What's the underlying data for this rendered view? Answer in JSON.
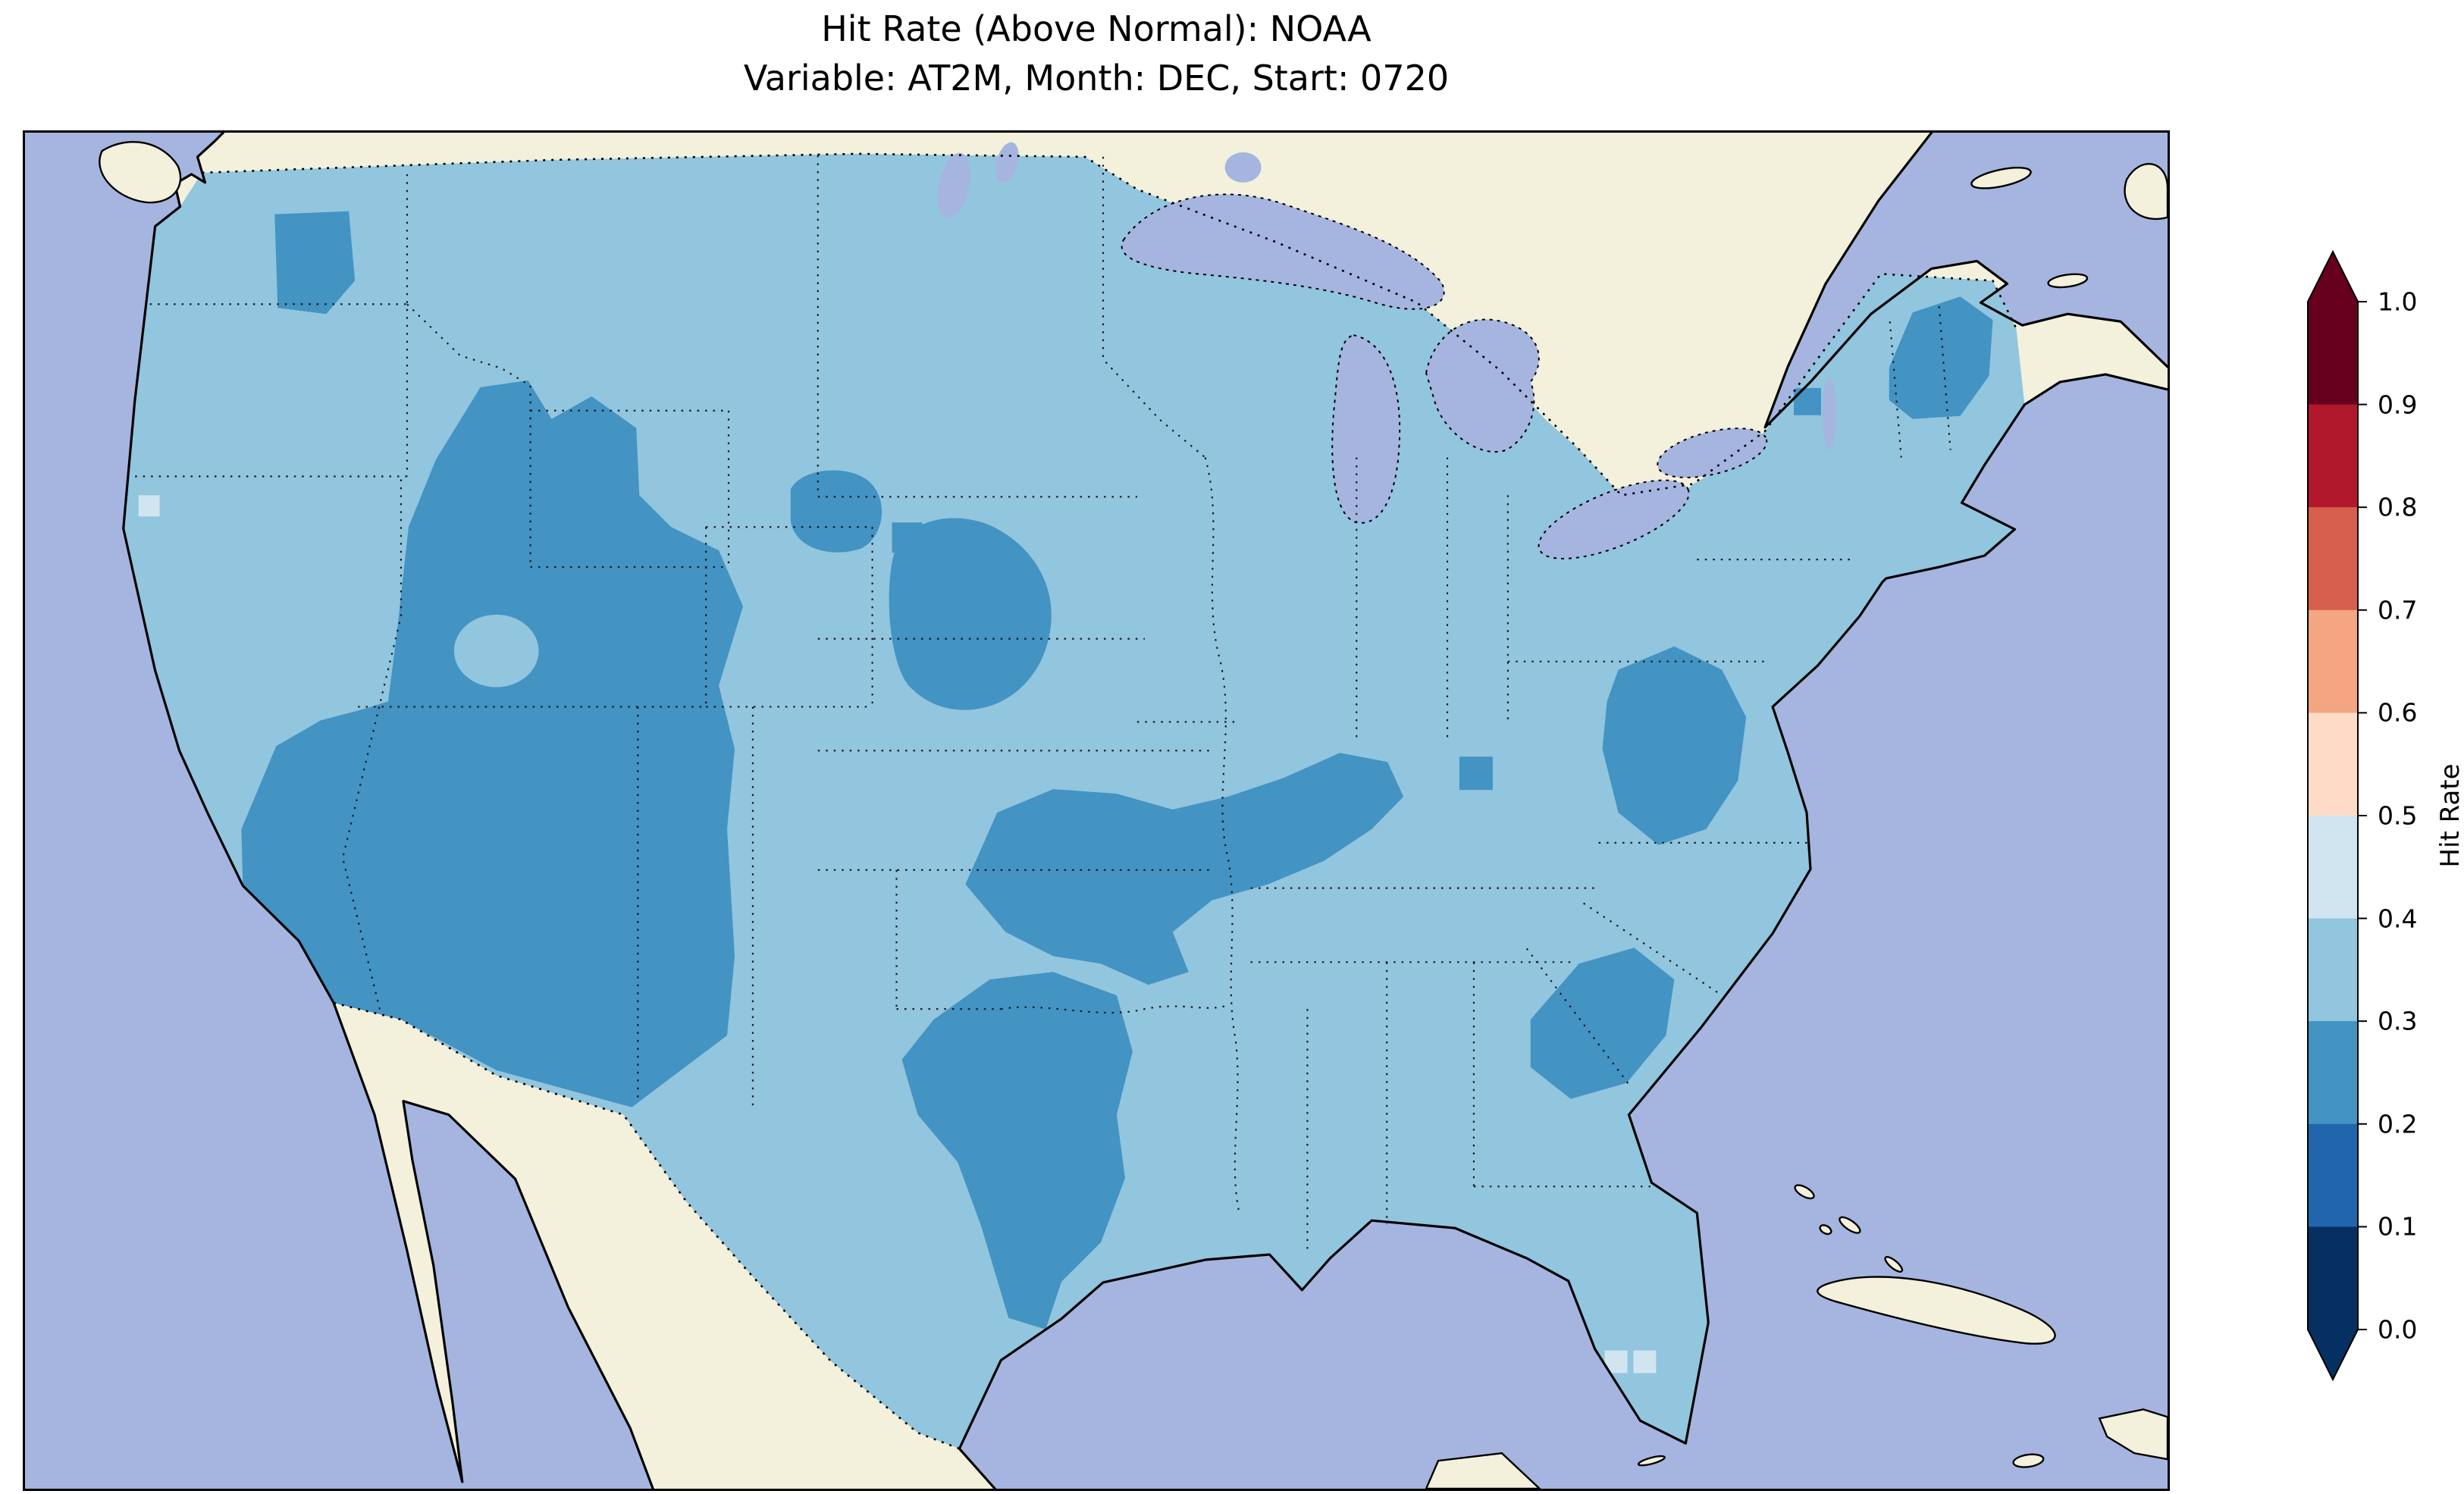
{
  "title": {
    "line1": "Hit Rate (Above Normal): NOAA",
    "line2": "Variable: AT2M, Month: DEC, Start: 0720"
  },
  "colorbar": {
    "label": "Hit Rate",
    "ticks": [
      "1.0",
      "0.9",
      "0.8",
      "0.7",
      "0.6",
      "0.5",
      "0.4",
      "0.3",
      "0.2",
      "0.1",
      "0.0"
    ],
    "segments": [
      {
        "range": "0.9-1.0",
        "color": "#67001f"
      },
      {
        "range": "0.8-0.9",
        "color": "#b2182b"
      },
      {
        "range": "0.7-0.8",
        "color": "#d6604d"
      },
      {
        "range": "0.6-0.7",
        "color": "#f4a582"
      },
      {
        "range": "0.5-0.6",
        "color": "#fddbc7"
      },
      {
        "range": "0.4-0.5",
        "color": "#d1e5f0"
      },
      {
        "range": "0.3-0.4",
        "color": "#92c5de"
      },
      {
        "range": "0.2-0.3",
        "color": "#4393c3"
      },
      {
        "range": "0.1-0.2",
        "color": "#2166ac"
      },
      {
        "range": "0.0-0.1",
        "color": "#053061"
      }
    ],
    "extend_upper_color": "#67001f",
    "extend_lower_color": "#053061"
  },
  "map_colors": {
    "ocean": "#a5b5e0",
    "non_us_land": "#f3f0db",
    "coastline": "#000000"
  },
  "chart_data": {
    "type": "heatmap",
    "title": "Hit Rate (Above Normal): NOAA",
    "subtitle": "Variable: AT2M, Month: DEC, Start: 0720",
    "metric": "Hit Rate (Above Normal)",
    "source": "NOAA",
    "variable": "AT2M",
    "month": "DEC",
    "start": "0720",
    "region": "Contiguous United States (gridded cells), Canada/Mexico shown as land without data",
    "colorbar_label": "Hit Rate",
    "value_range": [
      0.0,
      1.0
    ],
    "bin_width": 0.1,
    "colormap": "RdBu_r discrete, 10 bins, extend arrows on both ends",
    "observed_value_bins": [
      "0.2-0.3",
      "0.3-0.4",
      "0.4-0.5"
    ],
    "regions": [
      {
        "area": "Most of the contiguous US (Pacific NW coast, northern plains, Midwest, Gulf coast, Florida, mid-Atlantic)",
        "hit_rate": "0.3-0.4"
      },
      {
        "area": "Great Basin / Southwest (Nevada, Utah, Arizona, western Colorado, western New Mexico, southern California)",
        "hit_rate": "0.2-0.3"
      },
      {
        "area": "Central Washington",
        "hit_rate": "0.2-0.3"
      },
      {
        "area": "Western Dakotas / northeastern Wyoming / Black Hills region",
        "hit_rate": "0.2-0.3"
      },
      {
        "area": "Missouri - Kentucky - Tennessee band into West Virginia",
        "hit_rate": "0.2-0.3"
      },
      {
        "area": "Central and southern Texas",
        "hit_rate": "0.2-0.3"
      },
      {
        "area": "Virginia / Carolinas interior",
        "hit_rate": "0.2-0.3"
      },
      {
        "area": "Coastal Georgia / South Carolina",
        "hit_rate": "0.2-0.3"
      },
      {
        "area": "Maine / northern New England",
        "hit_rate": "0.2-0.3"
      },
      {
        "area": "Scattered cells (south Florida keys area, south Texas coast, central California coast)",
        "hit_rate": "0.4-0.5"
      },
      {
        "area": "Small hole of lighter values in central Nevada/Utah border area",
        "hit_rate": "0.3-0.4"
      }
    ]
  }
}
